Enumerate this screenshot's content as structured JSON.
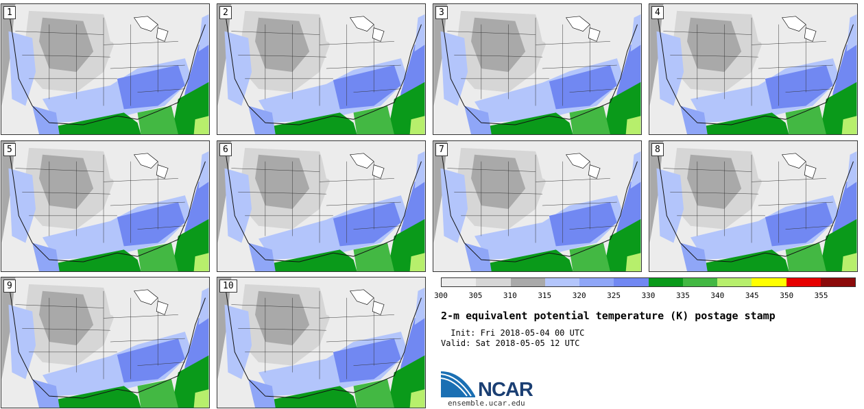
{
  "title": "2-m equivalent potential temperature (K) postage stamp",
  "init_label": " Init: Fri 2018-05-04 00 UTC",
  "valid_label": "Valid: Sat 2018-05-05 12 UTC",
  "logo_text": "NCAR",
  "url": "ensemble.ucar.edu",
  "members": [
    "1",
    "2",
    "3",
    "4",
    "5",
    "6",
    "7",
    "8",
    "9",
    "10"
  ],
  "colorbar": {
    "ticks": [
      "300",
      "305",
      "310",
      "315",
      "320",
      "325",
      "330",
      "335",
      "340",
      "345",
      "350",
      "355"
    ],
    "colors": [
      "#ececec",
      "#d6d6d6",
      "#a9a9a9",
      "#b3c5fb",
      "#8fa6f7",
      "#7188f2",
      "#0a9a1a",
      "#43b843",
      "#b7ef6c",
      "#ffff00",
      "#e60000",
      "#8b0a0a"
    ]
  },
  "palette": {
    "land_light": "#ececec",
    "land_mid": "#d6d6d6",
    "land_dark": "#a9a9a9",
    "blue_light": "#b3c5fb",
    "blue_mid": "#8fa6f7",
    "blue_dark": "#7188f2",
    "green_dark": "#0a9a1a",
    "green_mid": "#43b843",
    "green_light": "#b7ef6c"
  }
}
